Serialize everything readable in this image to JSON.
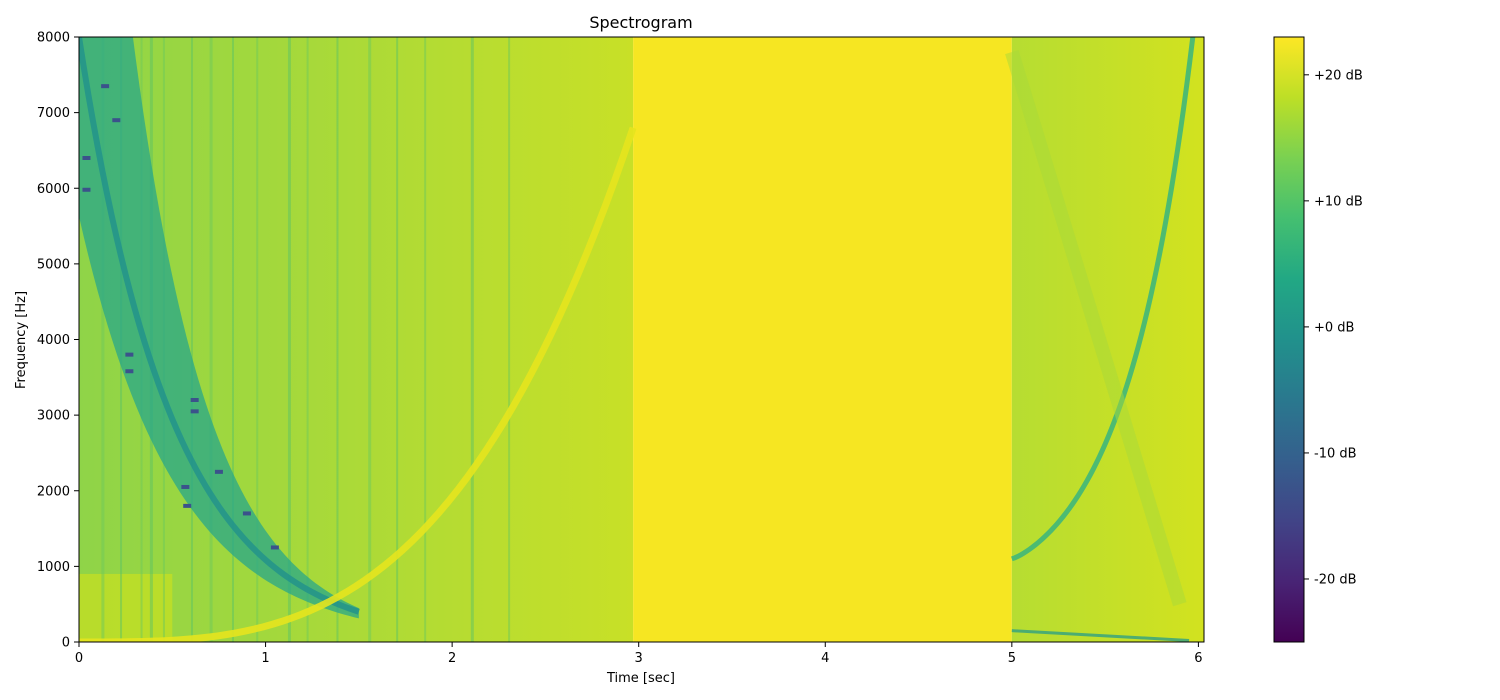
{
  "chart_data": {
    "type": "heatmap",
    "title": "Spectrogram",
    "xlabel": "Time [sec]",
    "ylabel": "Frequency [Hz]",
    "xlim": [
      0,
      6.03
    ],
    "ylim": [
      0,
      8000
    ],
    "xticks": [
      0,
      1,
      2,
      3,
      4,
      5,
      6
    ],
    "xtick_labels": [
      "0",
      "1",
      "2",
      "3",
      "4",
      "5",
      "6"
    ],
    "yticks": [
      0,
      1000,
      2000,
      3000,
      4000,
      5000,
      6000,
      7000,
      8000
    ],
    "ytick_labels": [
      "0",
      "1000",
      "2000",
      "3000",
      "4000",
      "5000",
      "6000",
      "7000",
      "8000"
    ],
    "colormap": "viridis",
    "colorbar": {
      "range_db": [
        -25,
        23
      ],
      "ticks": [
        20,
        10,
        0,
        -10,
        -20
      ],
      "tick_labels": [
        "+20 dB",
        "+10 dB",
        "+0 dB",
        "-10 dB",
        "-20 dB"
      ]
    },
    "segments": [
      {
        "t_start": 0.0,
        "t_end": 1.5,
        "description": "decreasing dark chirp from 8000 Hz toward ~400 Hz",
        "f_start_hz": 8000,
        "f_end_hz": 400
      },
      {
        "t_start": 0.0,
        "t_end": 2.97,
        "description": "increasing bright chirp from ~0 Hz to ~6800 Hz",
        "f_start_hz": 0,
        "f_end_hz": 6800
      },
      {
        "t_start": 2.97,
        "t_end": 5.0,
        "description": "uniform high level (~+22 dB)"
      },
      {
        "t_start": 5.0,
        "t_end": 6.0,
        "description": "increasing dark chirp from ~1100 Hz to ~8000 Hz",
        "f_start_hz": 1100,
        "f_end_hz": 8000
      }
    ]
  }
}
